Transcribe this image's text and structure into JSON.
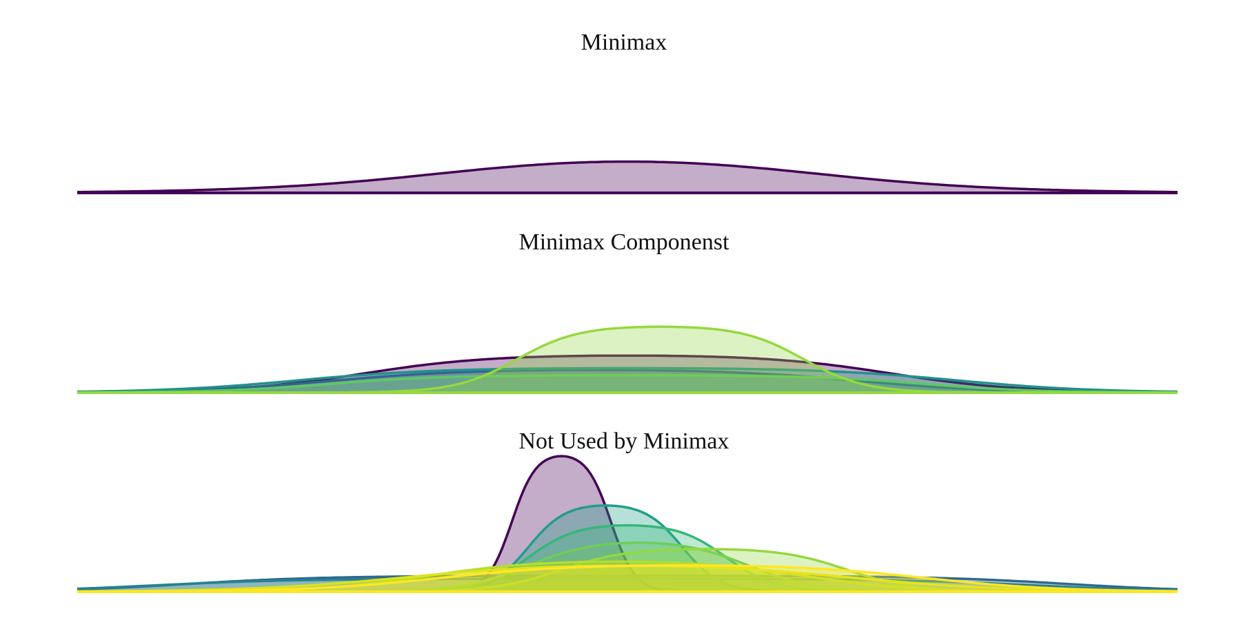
{
  "chart_data": [
    {
      "type": "area",
      "title": "Minimax",
      "x_range": [
        0,
        1
      ],
      "series": [
        {
          "color": "#440154",
          "center": 0.5,
          "half_width": 0.16,
          "edge_softness": 0.085,
          "height": 0.28,
          "tail": 0.05
        }
      ]
    },
    {
      "type": "area",
      "title": "Minimax Componenst",
      "x_range": [
        0,
        1
      ],
      "series": [
        {
          "color": "#440154",
          "center": 0.5,
          "half_width": 0.24,
          "edge_softness": 0.055,
          "height": 0.26,
          "tail": 0.06
        },
        {
          "color": "#3b528b",
          "center": 0.47,
          "half_width": 0.24,
          "edge_softness": 0.06,
          "height": 0.16,
          "tail": 0.05
        },
        {
          "color": "#21918c",
          "center": 0.5,
          "half_width": 0.3,
          "edge_softness": 0.06,
          "height": 0.17,
          "tail": 0.08
        },
        {
          "color": "#5ec962",
          "center": 0.5,
          "half_width": 0.27,
          "edge_softness": 0.05,
          "height": 0.12,
          "tail": 0.04
        },
        {
          "color": "#95d840",
          "center": 0.53,
          "half_width": 0.13,
          "edge_softness": 0.028,
          "height": 0.46,
          "tail": 0.0
        }
      ]
    },
    {
      "type": "area",
      "title": "Not Used by Minimax",
      "x_range": [
        0,
        1
      ],
      "series": [
        {
          "color": "#440154",
          "center": 0.44,
          "half_width": 0.045,
          "edge_softness": 0.011,
          "height": 0.96,
          "tail": 0.0
        },
        {
          "color": "#31688e",
          "center": 0.5,
          "half_width": 0.4,
          "edge_softness": 0.06,
          "height": 0.11,
          "tail": 0.05
        },
        {
          "color": "#26828e",
          "center": 0.47,
          "half_width": 0.4,
          "edge_softness": 0.06,
          "height": 0.09,
          "tail": 0.05
        },
        {
          "color": "#1f9e89",
          "center": 0.48,
          "half_width": 0.07,
          "edge_softness": 0.017,
          "height": 0.61,
          "tail": 0.0
        },
        {
          "color": "#35b779",
          "center": 0.5,
          "half_width": 0.09,
          "edge_softness": 0.022,
          "height": 0.47,
          "tail": 0.0
        },
        {
          "color": "#6ece58",
          "center": 0.51,
          "half_width": 0.1,
          "edge_softness": 0.03,
          "height": 0.36,
          "tail": 0.0
        },
        {
          "color": "#95d840",
          "center": 0.57,
          "half_width": 0.13,
          "edge_softness": 0.03,
          "height": 0.3,
          "tail": 0.0
        },
        {
          "color": "#b5de2b",
          "center": 0.49,
          "half_width": 0.17,
          "edge_softness": 0.05,
          "height": 0.22,
          "tail": 0.0
        },
        {
          "color": "#dde318",
          "center": 0.5,
          "half_width": 0.2,
          "edge_softness": 0.07,
          "height": 0.2,
          "tail": 0.0
        },
        {
          "color": "#fde725",
          "center": 0.55,
          "half_width": 0.22,
          "edge_softness": 0.06,
          "height": 0.19,
          "tail": 0.0
        }
      ]
    }
  ]
}
